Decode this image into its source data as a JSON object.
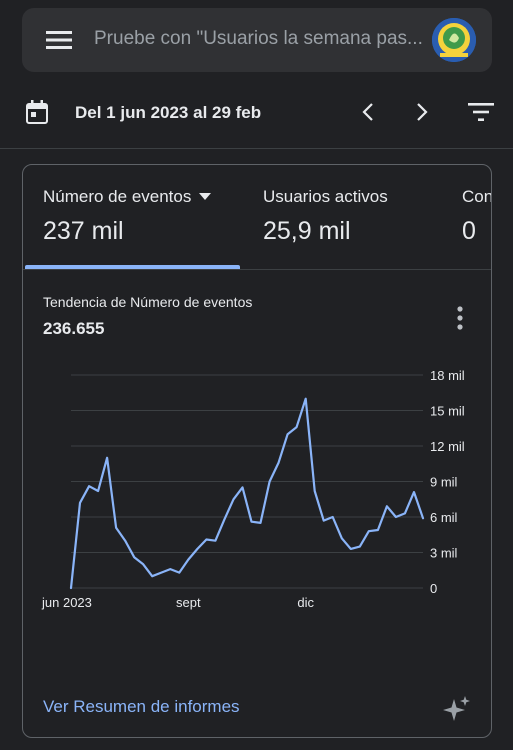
{
  "search": {
    "placeholder": "Pruebe con \"Usuarios la semana pas..."
  },
  "date_range": {
    "label": "Del 1 jun 2023 al 29 feb"
  },
  "icons": {
    "menu": "menu-icon",
    "calendar": "calendar-icon",
    "prev": "chevron-left-icon",
    "next": "chevron-right-icon",
    "filter": "filter-icon",
    "more": "more-vert-icon",
    "sparkle": "sparkle-icon"
  },
  "tabs": [
    {
      "label": "Número de eventos",
      "value": "237 mil",
      "selected": true
    },
    {
      "label": "Usuarios activos",
      "value": "25,9 mil",
      "selected": false
    },
    {
      "label": "Con",
      "value": "0",
      "selected": false
    }
  ],
  "trend": {
    "title": "Tendencia de Número de eventos",
    "total": "236.655"
  },
  "chart_data": {
    "type": "line",
    "title": "Tendencia de Número de eventos",
    "xlabel": "",
    "ylabel": "",
    "ylim": [
      0,
      18000
    ],
    "y_ticks": [
      0,
      3000,
      6000,
      9000,
      12000,
      15000,
      18000
    ],
    "y_tick_labels": [
      "0",
      "3 mil",
      "6 mil",
      "9 mil",
      "12 mil",
      "15 mil",
      "18 mil"
    ],
    "x_tick_labels": [
      {
        "week": 0,
        "label": "jun 2023"
      },
      {
        "week": 13,
        "label": "sept"
      },
      {
        "week": 26,
        "label": "dic"
      }
    ],
    "grid": true,
    "series": [
      {
        "color": "#8ab4f8",
        "x": [
          0,
          1,
          2,
          3,
          4,
          5,
          6,
          7,
          8,
          9,
          10,
          11,
          12,
          13,
          14,
          15,
          16,
          17,
          18,
          19,
          20,
          21,
          22,
          23,
          24,
          25,
          26,
          27,
          28,
          29,
          30,
          31,
          32,
          33,
          34,
          35,
          36,
          37,
          38,
          39
        ],
        "values": [
          0,
          7200,
          8600,
          8200,
          11000,
          5100,
          4000,
          2600,
          2000,
          1000,
          1300,
          1600,
          1300,
          2400,
          3300,
          4100,
          4000,
          5800,
          7500,
          8500,
          5600,
          5500,
          9000,
          10600,
          13000,
          13600,
          16000,
          8200,
          5700,
          6000,
          4200,
          3300,
          3500,
          4800,
          4900,
          6900,
          6000,
          6300,
          8100,
          5900
        ]
      }
    ]
  },
  "footer": {
    "link_label": "Ver Resumen de informes"
  }
}
